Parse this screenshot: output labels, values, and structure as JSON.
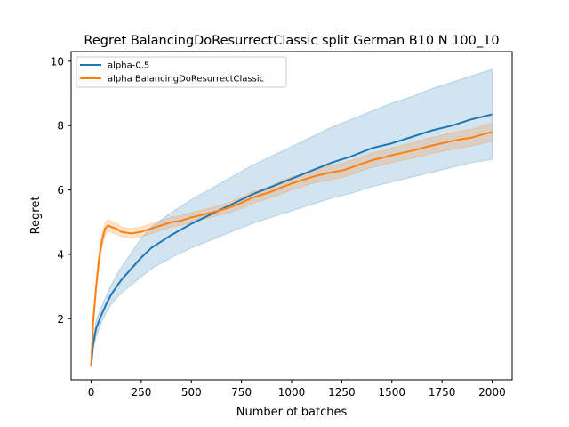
{
  "chart_data": {
    "type": "line",
    "title": "Regret BalancingDoResurrectClassic split German B10 N 100_10",
    "xlabel": "Number of batches",
    "ylabel": "Regret",
    "xlim": [
      -100,
      2100
    ],
    "ylim": [
      0.1,
      10.3
    ],
    "xticks": [
      0,
      250,
      500,
      750,
      1000,
      1250,
      1500,
      1750,
      2000
    ],
    "xtick_labels": [
      "0",
      "250",
      "500",
      "750",
      "1000",
      "1250",
      "1500",
      "1750",
      "2000"
    ],
    "yticks": [
      2,
      4,
      6,
      8,
      10
    ],
    "ytick_labels": [
      "2",
      "4",
      "6",
      "8",
      "10"
    ],
    "grid": false,
    "legend_position": "top-left",
    "series": [
      {
        "name": "alpha-0.5",
        "color": "#1f77b4",
        "x": [
          0,
          10,
          25,
          50,
          75,
          100,
          150,
          200,
          250,
          300,
          400,
          500,
          600,
          700,
          800,
          900,
          1000,
          1100,
          1200,
          1300,
          1400,
          1500,
          1600,
          1700,
          1800,
          1900,
          2000
        ],
        "y": [
          0.55,
          1.2,
          1.7,
          2.1,
          2.45,
          2.75,
          3.2,
          3.55,
          3.9,
          4.2,
          4.6,
          4.95,
          5.25,
          5.55,
          5.85,
          6.1,
          6.35,
          6.6,
          6.85,
          7.05,
          7.3,
          7.45,
          7.65,
          7.85,
          8.0,
          8.2,
          8.35
        ],
        "lower": [
          0.5,
          1.05,
          1.45,
          1.85,
          2.2,
          2.45,
          2.8,
          3.05,
          3.3,
          3.55,
          3.9,
          4.2,
          4.45,
          4.7,
          4.95,
          5.15,
          5.35,
          5.55,
          5.75,
          5.9,
          6.1,
          6.25,
          6.4,
          6.55,
          6.7,
          6.85,
          6.95
        ],
        "upper": [
          0.6,
          1.35,
          1.95,
          2.35,
          2.7,
          3.05,
          3.6,
          4.05,
          4.5,
          4.85,
          5.3,
          5.7,
          6.05,
          6.4,
          6.75,
          7.05,
          7.35,
          7.65,
          7.95,
          8.2,
          8.45,
          8.7,
          8.9,
          9.15,
          9.35,
          9.55,
          9.75
        ]
      },
      {
        "name": "alpha BalancingDoResurrectClassic",
        "color": "#ff7f0e",
        "x": [
          0,
          10,
          25,
          40,
          55,
          70,
          85,
          100,
          125,
          150,
          200,
          250,
          300,
          350,
          400,
          450,
          500,
          550,
          600,
          650,
          700,
          750,
          800,
          850,
          900,
          950,
          1000,
          1050,
          1100,
          1150,
          1200,
          1250,
          1300,
          1350,
          1400,
          1450,
          1500,
          1550,
          1600,
          1650,
          1700,
          1750,
          1800,
          1850,
          1900,
          1950,
          2000
        ],
        "y": [
          0.55,
          1.9,
          3.0,
          3.9,
          4.45,
          4.8,
          4.9,
          4.85,
          4.8,
          4.7,
          4.65,
          4.7,
          4.8,
          4.9,
          5.0,
          5.05,
          5.15,
          5.22,
          5.3,
          5.38,
          5.48,
          5.6,
          5.75,
          5.85,
          5.95,
          6.08,
          6.2,
          6.3,
          6.4,
          6.48,
          6.55,
          6.6,
          6.7,
          6.82,
          6.92,
          7.0,
          7.08,
          7.15,
          7.22,
          7.3,
          7.38,
          7.45,
          7.52,
          7.58,
          7.63,
          7.72,
          7.8
        ],
        "lower": [
          0.5,
          1.75,
          2.85,
          3.7,
          4.25,
          4.6,
          4.72,
          4.68,
          4.63,
          4.55,
          4.5,
          4.55,
          4.65,
          4.75,
          4.85,
          4.9,
          5.0,
          5.08,
          5.15,
          5.23,
          5.32,
          5.43,
          5.57,
          5.67,
          5.77,
          5.88,
          6.0,
          6.1,
          6.2,
          6.27,
          6.33,
          6.38,
          6.48,
          6.6,
          6.7,
          6.78,
          6.85,
          6.92,
          6.98,
          7.05,
          7.13,
          7.2,
          7.26,
          7.32,
          7.37,
          7.45,
          7.52
        ],
        "upper": [
          0.6,
          2.05,
          3.15,
          4.1,
          4.65,
          5.0,
          5.08,
          5.03,
          4.97,
          4.85,
          4.8,
          4.85,
          4.95,
          5.05,
          5.15,
          5.2,
          5.3,
          5.37,
          5.45,
          5.53,
          5.64,
          5.77,
          5.93,
          6.03,
          6.13,
          6.28,
          6.4,
          6.5,
          6.6,
          6.69,
          6.77,
          6.82,
          6.92,
          7.04,
          7.14,
          7.22,
          7.31,
          7.38,
          7.46,
          7.55,
          7.63,
          7.7,
          7.78,
          7.84,
          7.89,
          7.99,
          8.08
        ]
      }
    ]
  }
}
